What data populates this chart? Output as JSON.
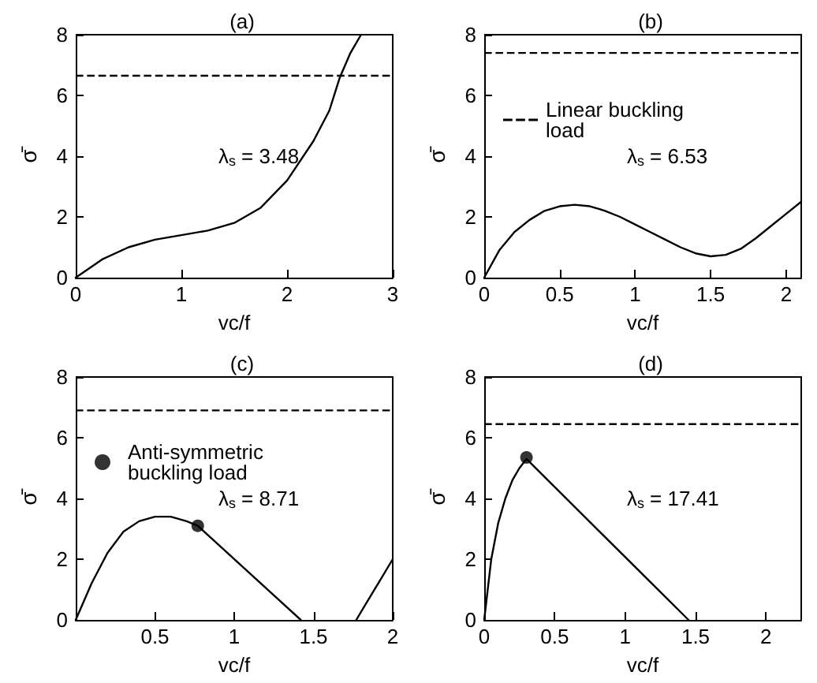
{
  "chart_data": [
    {
      "type": "line",
      "title": "(a)",
      "xlabel": "vc/f",
      "ylabel": "σ̄",
      "xlim": [
        0,
        3
      ],
      "xticks": [
        0,
        1,
        2,
        3
      ],
      "ylim": [
        0,
        8
      ],
      "yticks": [
        0,
        2,
        4,
        6,
        8
      ],
      "grid": false,
      "legend": false,
      "marker": "none",
      "line_style": "solid",
      "series": [
        {
          "color": "#000000",
          "x": [
            0,
            0.25,
            0.5,
            0.75,
            1,
            1.25,
            1.5,
            1.75,
            2,
            2.25,
            2.4,
            2.5,
            2.6,
            2.7
          ],
          "values": [
            0,
            0.6,
            1.0,
            1.25,
            1.4,
            1.55,
            1.8,
            2.3,
            3.2,
            4.5,
            5.5,
            6.6,
            7.4,
            8
          ]
        }
      ],
      "ref_lines": [
        {
          "axis": "y",
          "value": 6.65,
          "line_style": "dashed",
          "color": "#000000"
        }
      ],
      "annotations": [
        "λ$_{s}$ = 3.48"
      ]
    },
    {
      "type": "line",
      "title": "(b)",
      "xlabel": "vc/f",
      "ylabel": "σ̄",
      "xlim": [
        0,
        2.1
      ],
      "xticks": [
        0,
        0.5,
        1,
        1.5,
        2
      ],
      "ylim": [
        0,
        8
      ],
      "yticks": [
        0,
        2,
        4,
        6,
        8
      ],
      "grid": false,
      "legend": "left",
      "marker": "none",
      "line_style": "solid",
      "series": [
        {
          "color": "#000000",
          "x": [
            0,
            0.1,
            0.2,
            0.3,
            0.4,
            0.5,
            0.6,
            0.7,
            0.8,
            0.9,
            1,
            1.1,
            1.2,
            1.3,
            1.4,
            1.5,
            1.6,
            1.7,
            1.8,
            1.9,
            2,
            2.1
          ],
          "values": [
            0,
            0.9,
            1.5,
            1.9,
            2.2,
            2.35,
            2.4,
            2.35,
            2.2,
            2.0,
            1.75,
            1.5,
            1.25,
            1.0,
            0.8,
            0.7,
            0.75,
            0.95,
            1.3,
            1.7,
            2.1,
            2.5
          ]
        }
      ],
      "ref_lines": [
        {
          "axis": "y",
          "value": 7.4,
          "label": "Linear buckling load",
          "line_style": "dashed",
          "color": "#000000"
        }
      ],
      "annotations": [
        "λ$_{s}$ = 6.53"
      ]
    },
    {
      "type": "line",
      "title": "(c)",
      "xlabel": "vc/f",
      "ylabel": "σ̄",
      "xlim": [
        0,
        2
      ],
      "xticks": [
        {
          "value": 0,
          "label": null
        },
        0.5,
        1,
        1.5,
        2
      ],
      "ylim": [
        0,
        8
      ],
      "yticks": [
        0,
        2,
        4,
        6,
        8
      ],
      "grid": false,
      "legend": "left",
      "marker": "none",
      "line_style": "solid",
      "series": [
        {
          "color": "#000000",
          "x": [
            0,
            0.1,
            0.2,
            0.3,
            0.4,
            0.5,
            0.6,
            0.7,
            0.77,
            1.42
          ],
          "values": [
            0,
            1.2,
            2.2,
            2.9,
            3.25,
            3.4,
            3.4,
            3.25,
            3.1,
            0
          ]
        },
        {
          "color": "#000000",
          "x": [
            1.77,
            1.85,
            1.92,
            2
          ],
          "values": [
            0,
            0.7,
            1.3,
            2.0
          ]
        },
        {
          "type": "scatter",
          "name": "Anti-symmetric buckling load",
          "color": "#000000",
          "marker": "circle",
          "x": [
            0.77
          ],
          "values": [
            3.1
          ]
        }
      ],
      "ref_lines": [
        {
          "axis": "y",
          "value": 6.9,
          "line_style": "dashed",
          "color": "#000000"
        }
      ],
      "annotations": [
        "λ$_{s}$ = 8.71"
      ]
    },
    {
      "type": "line",
      "title": "(d)",
      "xlabel": "vc/f",
      "ylabel": "σ̄",
      "xlim": [
        0,
        2.25
      ],
      "xticks": [
        0,
        0.5,
        1,
        1.5,
        2
      ],
      "ylim": [
        0,
        8
      ],
      "yticks": [
        0,
        2,
        4,
        6,
        8
      ],
      "grid": false,
      "legend": false,
      "marker": "none",
      "line_style": "solid",
      "series": [
        {
          "color": "#000000",
          "x": [
            0,
            0.05,
            0.1,
            0.15,
            0.2,
            0.25,
            0.3,
            1.45
          ],
          "values": [
            0,
            2.0,
            3.2,
            4.0,
            4.6,
            5.0,
            5.3,
            0
          ]
        },
        {
          "type": "scatter",
          "color": "#000000",
          "marker": "circle",
          "x": [
            0.3
          ],
          "values": [
            5.35
          ]
        }
      ],
      "ref_lines": [
        {
          "axis": "y",
          "value": 6.45,
          "line_style": "dashed",
          "color": "#000000"
        }
      ],
      "annotations": [
        "λ$_{s}$ = 17.41"
      ]
    }
  ]
}
